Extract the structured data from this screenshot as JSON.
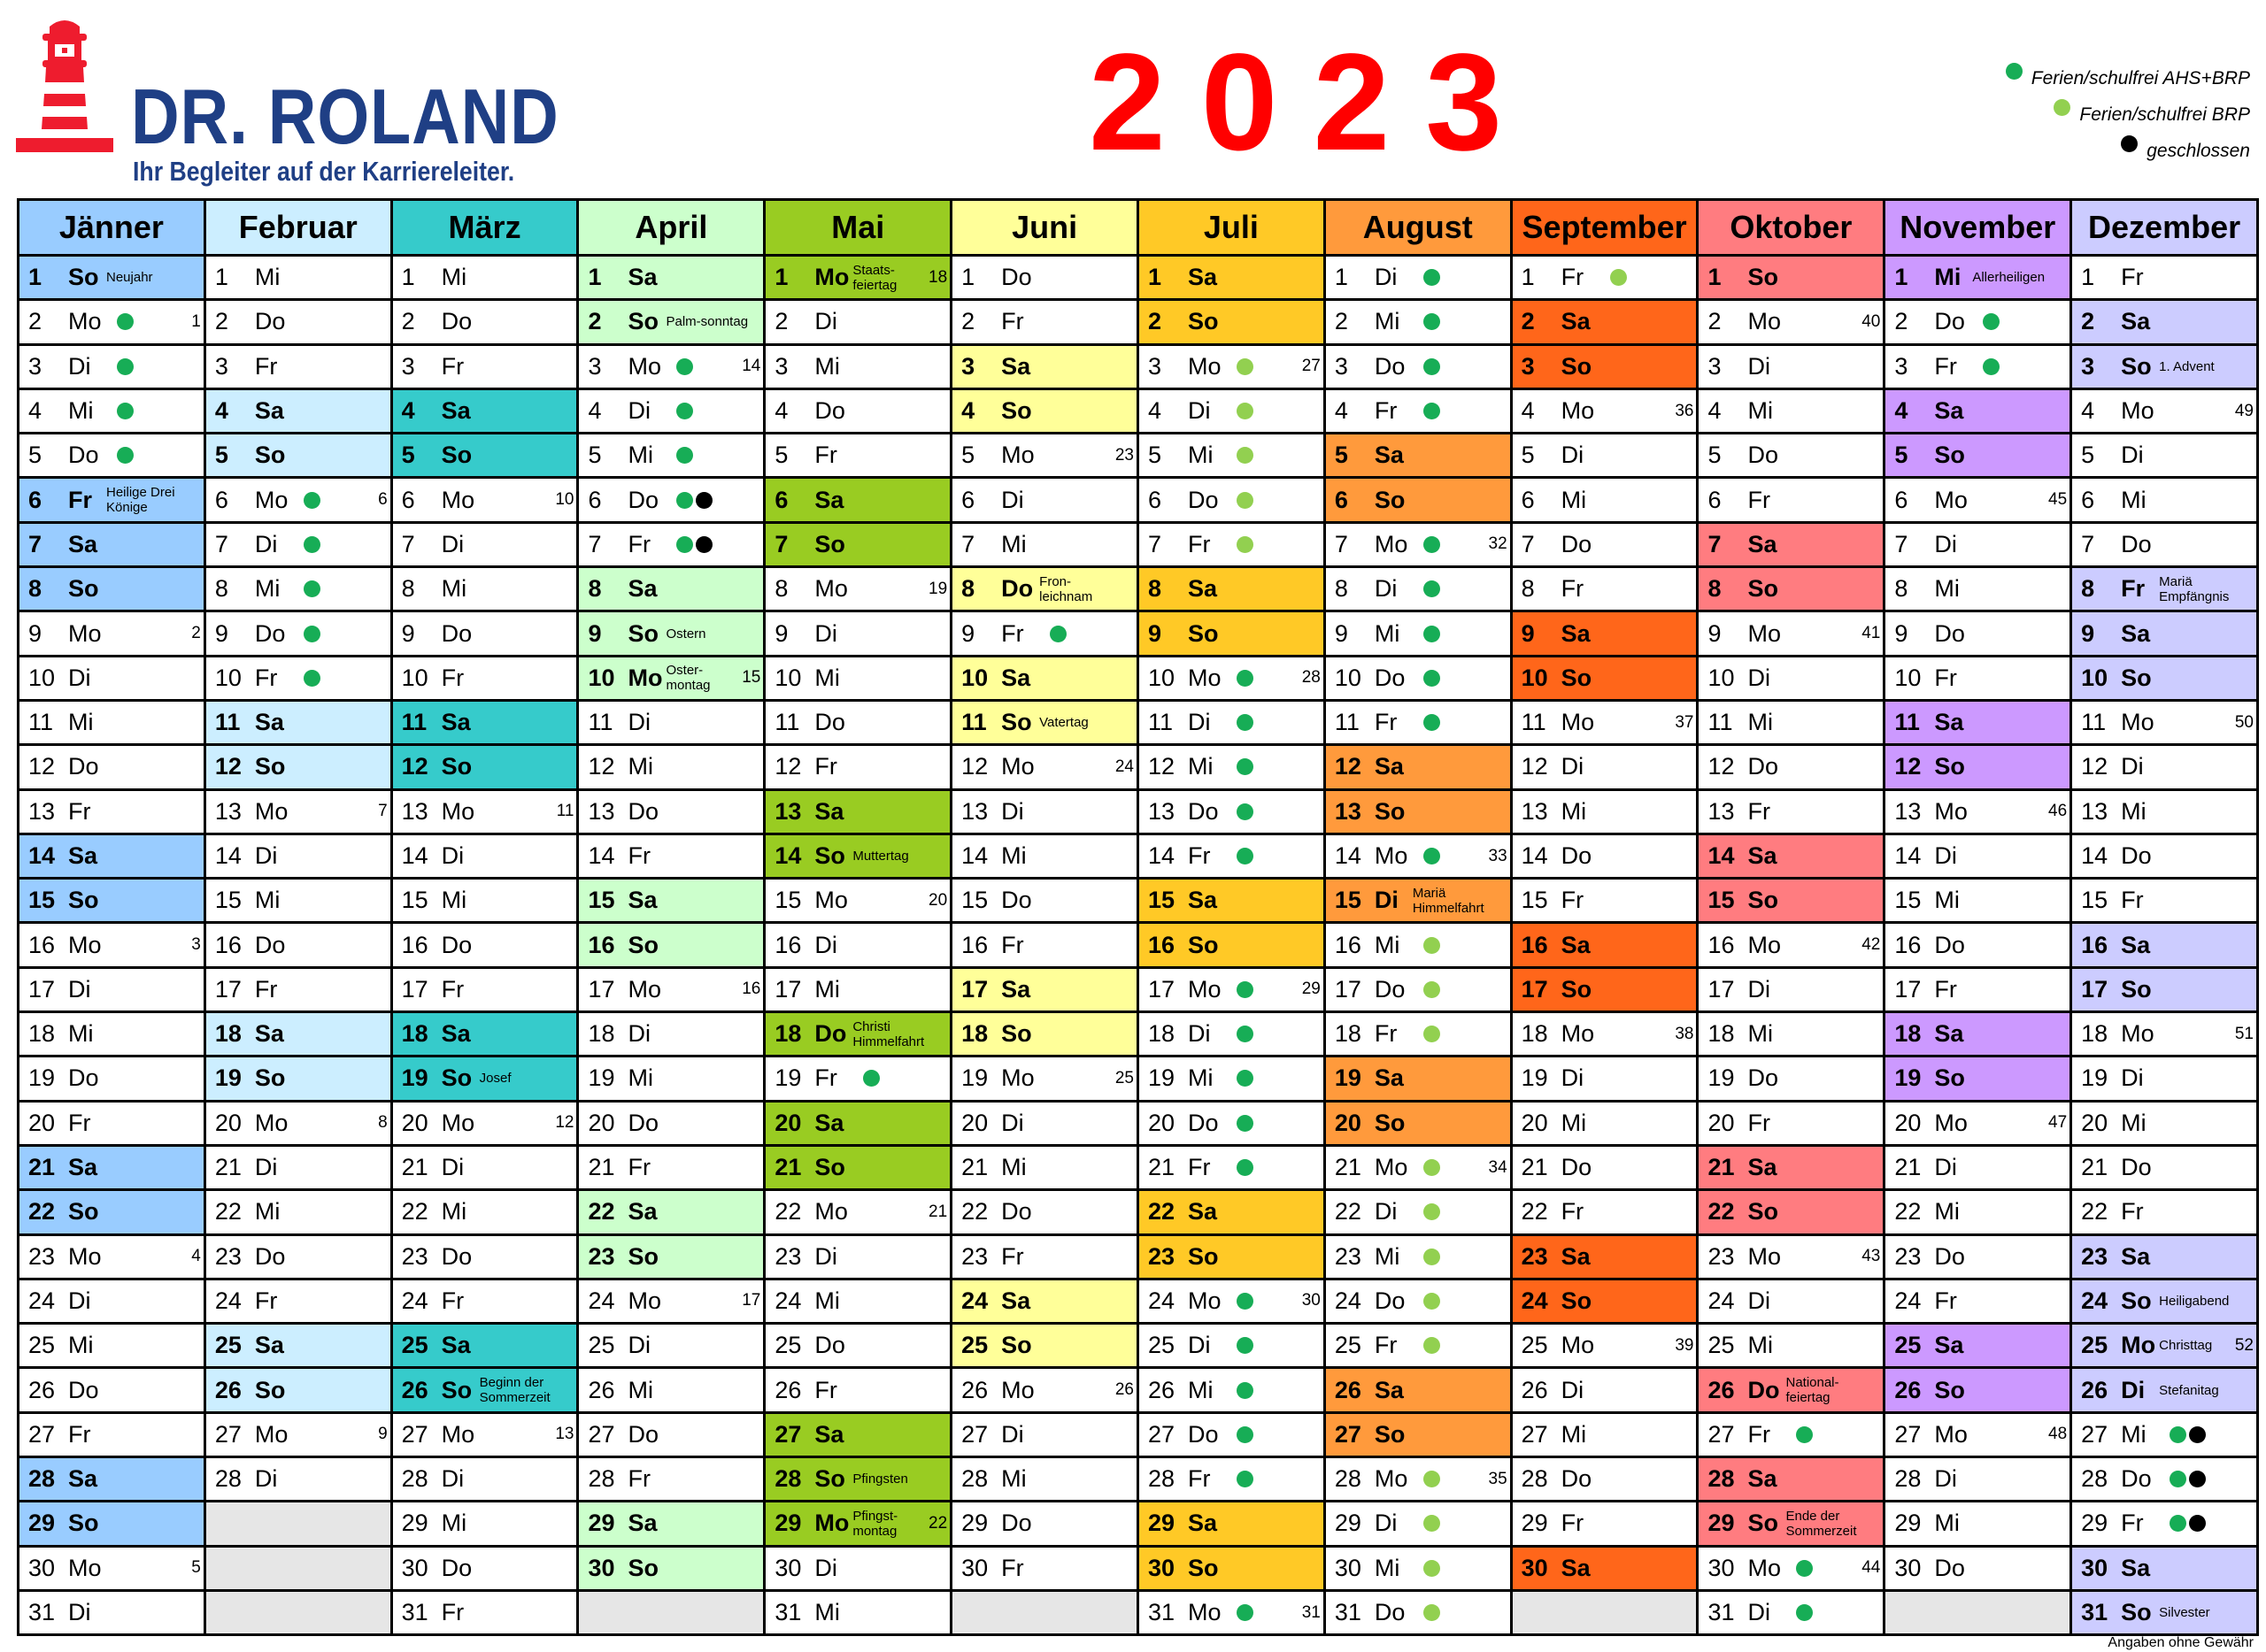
{
  "brand": {
    "name": "DR. ROLAND",
    "tagline": "Ihr Begleiter auf der Karriereleiter."
  },
  "year": "2023",
  "legend": [
    {
      "dot": "g",
      "label": "Ferien/schulfrei AHS+BRP"
    },
    {
      "dot": "l",
      "label": "Ferien/schulfrei BRP"
    },
    {
      "dot": "k",
      "label": "geschlossen"
    }
  ],
  "dot_colors": {
    "g": "#17ad56",
    "l": "#92d050",
    "k": "#000000"
  },
  "weekdays": [
    "So",
    "Mo",
    "Di",
    "Mi",
    "Do",
    "Fr",
    "Sa"
  ],
  "months": [
    {
      "name": "Jänner",
      "color": "#99ccff",
      "length": 31,
      "holidays": [
        1,
        6
      ],
      "notes": {
        "1": "Neujahr",
        "6": "Heilige Drei\nKönige"
      },
      "weeks": {
        "2": "1",
        "9": "2",
        "16": "3",
        "23": "4",
        "30": "5"
      },
      "dots": {
        "2": "g",
        "3": "g",
        "4": "g",
        "5": "g"
      }
    },
    {
      "name": "Februar",
      "color": "#cceeff",
      "length": 28,
      "holidays": [],
      "notes": {},
      "weeks": {
        "6": "6",
        "13": "7",
        "20": "8",
        "27": "9"
      },
      "dots": {
        "6": "g",
        "7": "g",
        "8": "g",
        "9": "g",
        "10": "g"
      }
    },
    {
      "name": "März",
      "color": "#36cbcb",
      "length": 31,
      "holidays": [],
      "notes": {
        "19": "Josef",
        "26": "Beginn der\nSommerzeit"
      },
      "weeks": {
        "6": "10",
        "13": "11",
        "20": "12",
        "27": "13"
      },
      "dots": {}
    },
    {
      "name": "April",
      "color": "#ccffcc",
      "length": 30,
      "holidays": [
        10
      ],
      "notes": {
        "2": "Palm-sonntag",
        "9": "Ostern",
        "10": "Oster-\nmontag"
      },
      "weeks": {
        "3": "14",
        "10": "15",
        "17": "16",
        "24": "17"
      },
      "dots": {
        "3": "g",
        "4": "g",
        "5": "g",
        "6": "gk",
        "7": "gk"
      }
    },
    {
      "name": "Mai",
      "color": "#99cc22",
      "length": 31,
      "holidays": [
        1,
        18,
        29
      ],
      "notes": {
        "1": "Staats-\nfeiertag",
        "14": "Muttertag",
        "18": "Christi\nHimmelfahrt",
        "28": "Pfingsten",
        "29": "Pfingst-\nmontag"
      },
      "weeks": {
        "1": "18",
        "8": "19",
        "15": "20",
        "22": "21",
        "29": "22"
      },
      "dots": {
        "19": "g"
      }
    },
    {
      "name": "Juni",
      "color": "#ffff99",
      "length": 30,
      "holidays": [
        8
      ],
      "notes": {
        "8": "Fron-\nleichnam",
        "11": "Vatertag"
      },
      "weeks": {
        "5": "23",
        "12": "24",
        "19": "25",
        "26": "26"
      },
      "dots": {
        "9": "g"
      }
    },
    {
      "name": "Juli",
      "color": "#ffc926",
      "length": 31,
      "holidays": [],
      "notes": {},
      "weeks": {
        "3": "27",
        "10": "28",
        "17": "29",
        "24": "30",
        "31": "31"
      },
      "dots": {
        "3": "l",
        "4": "l",
        "5": "l",
        "6": "l",
        "7": "l",
        "10": "g",
        "11": "g",
        "12": "g",
        "13": "g",
        "14": "g",
        "17": "g",
        "18": "g",
        "19": "g",
        "20": "g",
        "21": "g",
        "24": "g",
        "25": "g",
        "26": "g",
        "27": "g",
        "28": "g",
        "31": "g"
      }
    },
    {
      "name": "August",
      "color": "#ff9a3c",
      "length": 31,
      "holidays": [
        15
      ],
      "notes": {
        "15": "Mariä\nHimmelfahrt"
      },
      "weeks": {
        "7": "32",
        "14": "33",
        "21": "34",
        "28": "35"
      },
      "dots": {
        "1": "g",
        "2": "g",
        "3": "g",
        "4": "g",
        "7": "g",
        "8": "g",
        "9": "g",
        "10": "g",
        "11": "g",
        "14": "g",
        "16": "l",
        "17": "l",
        "18": "l",
        "21": "l",
        "22": "l",
        "23": "l",
        "24": "l",
        "25": "l",
        "28": "l",
        "29": "l",
        "30": "l",
        "31": "l"
      }
    },
    {
      "name": "September",
      "color": "#ff661a",
      "length": 30,
      "holidays": [],
      "notes": {},
      "weeks": {
        "4": "36",
        "11": "37",
        "18": "38",
        "25": "39"
      },
      "dots": {
        "1": "l"
      }
    },
    {
      "name": "Oktober",
      "color": "#ff7c80",
      "length": 31,
      "holidays": [
        26
      ],
      "notes": {
        "26": "National-\nfeiertag",
        "29": "Ende der\nSommerzeit"
      },
      "weeks": {
        "2": "40",
        "9": "41",
        "16": "42",
        "23": "43",
        "30": "44"
      },
      "dots": {
        "27": "g",
        "30": "g",
        "31": "g"
      }
    },
    {
      "name": "November",
      "color": "#cc99ff",
      "length": 30,
      "holidays": [
        1
      ],
      "notes": {
        "1": "Allerheiligen"
      },
      "weeks": {
        "6": "45",
        "13": "46",
        "20": "47",
        "27": "48"
      },
      "dots": {
        "2": "g",
        "3": "g"
      }
    },
    {
      "name": "Dezember",
      "color": "#ccccff",
      "length": 31,
      "holidays": [
        8,
        25,
        26
      ],
      "notes": {
        "3": "1. Advent",
        "8": "Mariä\nEmpfängnis",
        "24": "Heiligabend",
        "25": "Christtag",
        "26": "Stefanitag",
        "31": "Silvester"
      },
      "weeks": {
        "4": "49",
        "11": "50",
        "18": "51",
        "25": "52"
      },
      "dots": {
        "27": "gk",
        "28": "gk",
        "29": "gk"
      }
    }
  ],
  "disclaimer": "Angaben ohne Gewähr"
}
